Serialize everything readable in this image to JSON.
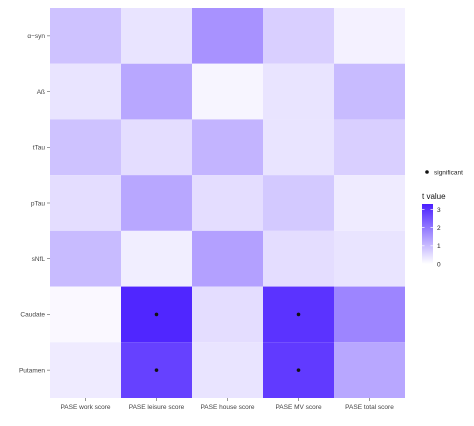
{
  "chart_data": {
    "type": "heatmap",
    "title": "",
    "xlabel": "",
    "ylabel": "",
    "x_categories": [
      "PASE work score",
      "PASE leisure score",
      "PASE house score",
      "PASE MV score",
      "PASE total score"
    ],
    "y_categories": [
      "α−syn",
      "Aß",
      "tTau",
      "pTau",
      "sNfL",
      "Caudate",
      "Putamen"
    ],
    "values": [
      [
        0.9,
        0.4,
        1.6,
        0.7,
        0.2
      ],
      [
        0.4,
        1.3,
        0.15,
        0.4,
        1.0
      ],
      [
        0.9,
        0.5,
        1.1,
        0.4,
        0.7
      ],
      [
        0.5,
        1.3,
        0.5,
        0.8,
        0.3
      ],
      [
        1.0,
        0.25,
        1.4,
        0.5,
        0.4
      ],
      [
        0.1,
        3.2,
        0.5,
        3.0,
        1.8
      ],
      [
        0.3,
        2.8,
        0.4,
        2.9,
        1.3
      ]
    ],
    "significant": [
      [
        false,
        false,
        false,
        false,
        false
      ],
      [
        false,
        false,
        false,
        false,
        false
      ],
      [
        false,
        false,
        false,
        false,
        false
      ],
      [
        false,
        false,
        false,
        false,
        false
      ],
      [
        false,
        false,
        false,
        false,
        false
      ],
      [
        false,
        true,
        false,
        true,
        false
      ],
      [
        false,
        true,
        false,
        true,
        false
      ]
    ],
    "color_scale": {
      "low": "#ffffff",
      "high": "#4b1fff",
      "min": 0,
      "max": 3.3
    },
    "legend": {
      "significance_label": "significant",
      "colorbar_title": "t value",
      "colorbar_ticks": [
        0,
        1,
        2,
        3
      ],
      "placement": "right"
    },
    "grid": true
  }
}
